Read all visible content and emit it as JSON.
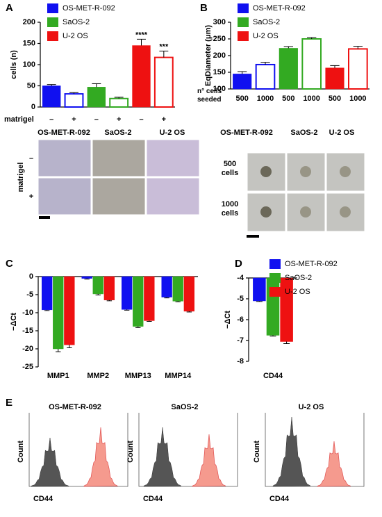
{
  "chart_data": [
    {
      "type": "bar",
      "layout": "sequential",
      "panel": "A",
      "ylabel": "cells (n)",
      "xlabel": "matrigel",
      "categories": [
        "–",
        "+"
      ],
      "hollow": [
        false,
        true
      ],
      "legend": true,
      "ylim": [
        0,
        200
      ],
      "yticks": [
        0,
        50,
        100,
        150,
        200
      ],
      "series": [
        {
          "name": "OS-MET-R-092",
          "color": "#1010f0",
          "values": [
            50,
            31
          ],
          "errors": [
            3,
            3
          ]
        },
        {
          "name": "SaOS-2",
          "color": "#33aa22",
          "values": [
            47,
            20
          ],
          "errors": [
            8,
            3
          ]
        },
        {
          "name": "U-2 OS",
          "color": "#ee1111",
          "values": [
            145,
            117
          ],
          "errors": [
            15,
            15
          ]
        }
      ],
      "annotations": [
        {
          "text": "****",
          "series": 2,
          "index": 0
        },
        {
          "text": "***",
          "series": 2,
          "index": 1
        }
      ]
    },
    {
      "type": "bar",
      "layout": "sequential",
      "panel": "B",
      "ylabel": "EqDiameter (μm)",
      "xlabel": "n° cells seeded",
      "categories": [
        "500",
        "1000"
      ],
      "hollow": [
        false,
        true
      ],
      "legend": true,
      "ylim": [
        100,
        300
      ],
      "yticks": [
        100,
        150,
        200,
        250,
        300
      ],
      "series": [
        {
          "name": "OS-MET-R-092",
          "color": "#1010f0",
          "values": [
            145,
            173
          ],
          "errors": [
            7,
            7
          ]
        },
        {
          "name": "SaOS-2",
          "color": "#33aa22",
          "values": [
            222,
            250
          ],
          "errors": [
            5,
            4
          ]
        },
        {
          "name": "U-2 OS",
          "color": "#ee1111",
          "values": [
            163,
            220
          ],
          "errors": [
            7,
            8
          ]
        }
      ]
    },
    {
      "type": "bar",
      "layout": "grouped",
      "panel": "C",
      "ylabel": "−ΔCt",
      "legend": false,
      "categories": [
        "MMP1",
        "MMP2",
        "MMP13",
        "MMP14"
      ],
      "ylim": [
        -25,
        0
      ],
      "yticks": [
        0,
        -5,
        -10,
        -15,
        -20,
        -25
      ],
      "series": [
        {
          "name": "OS-MET-R-092",
          "color": "#1010f0",
          "values": [
            -9.2,
            -0.5,
            -9.1,
            -5.7
          ],
          "errors": [
            0.2,
            0.2,
            0.2,
            0.2
          ]
        },
        {
          "name": "SaOS-2",
          "color": "#33aa22",
          "values": [
            -20,
            -4.8,
            -13.8,
            -6.8
          ],
          "errors": [
            0.8,
            0.3,
            0.3,
            0.2
          ]
        },
        {
          "name": "U-2 OS",
          "color": "#ee1111",
          "values": [
            -18.9,
            -6.5,
            -12.2,
            -9.6
          ],
          "errors": [
            0.8,
            0.2,
            0.2,
            0.2
          ]
        }
      ]
    },
    {
      "type": "bar",
      "layout": "grouped",
      "panel": "D",
      "ylabel": "−ΔCt",
      "legend": true,
      "categories": [
        "CD44"
      ],
      "ylim": [
        -8,
        -4
      ],
      "yticks": [
        -4,
        -5,
        -6,
        -7,
        -8
      ],
      "series": [
        {
          "name": "OS-MET-R-092",
          "color": "#1010f0",
          "values": [
            -5.1
          ],
          "errors": [
            0.03
          ]
        },
        {
          "name": "SaOS-2",
          "color": "#33aa22",
          "values": [
            -6.75
          ],
          "errors": [
            0.04
          ]
        },
        {
          "name": "U-2 OS",
          "color": "#ee1111",
          "values": [
            -7.05
          ],
          "errors": [
            0.1
          ]
        }
      ]
    }
  ],
  "photos_a": {
    "columns": [
      "OS-MET-R-092",
      "SaOS-2",
      "U-2 OS"
    ],
    "row_title": "matrigel",
    "rows": [
      "–",
      "+"
    ]
  },
  "photos_b": {
    "columns": [
      "OS-MET-R-092",
      "SaOS-2",
      "U-2 OS"
    ],
    "rows": [
      [
        "500",
        "cells"
      ],
      [
        "1000",
        "cells"
      ]
    ]
  },
  "flow": {
    "panel": "E",
    "plots": [
      {
        "title": "OS-MET-R-092",
        "ylabel": "Count",
        "xlabel": "CD44"
      },
      {
        "title": "SaOS-2",
        "ylabel": "Count",
        "xlabel": "CD44"
      },
      {
        "title": "U-2 OS",
        "ylabel": "Count",
        "xlabel": "CD44"
      }
    ]
  }
}
